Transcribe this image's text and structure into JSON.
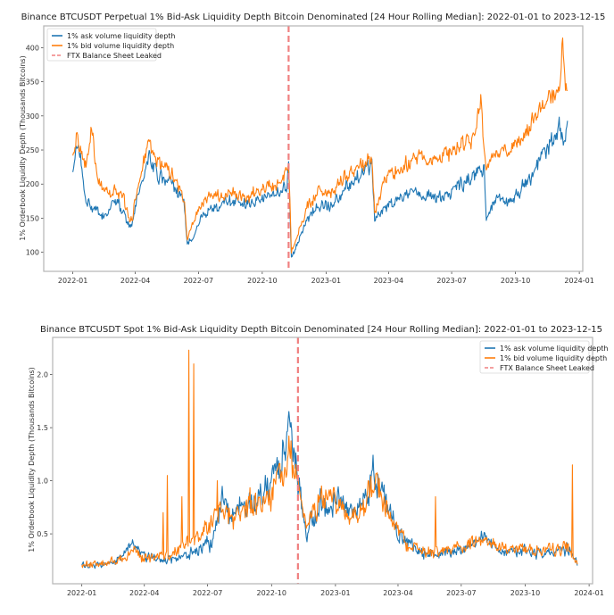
{
  "colors": {
    "ask": "#1f77b4",
    "bid": "#ff7f0e",
    "event": "#f08080"
  },
  "chart_data": [
    {
      "type": "line",
      "title": "Binance BTCUSDT Perpetual 1% Bid-Ask Liquidity Depth Bitcoin Denominated [24 Hour Rolling Median]: 2022-01-01 to 2023-12-15",
      "xlabel": "",
      "ylabel": "1% Orderbook Liquidity Depth (Thousands Bitcoins)",
      "xlim": [
        "2021-11-20",
        "2024-01-06"
      ],
      "ylim": [
        72,
        432
      ],
      "x_ticks": [
        "2022-01",
        "2022-04",
        "2022-07",
        "2022-10",
        "2023-01",
        "2023-04",
        "2023-07",
        "2023-10",
        "2024-01"
      ],
      "y_ticks": [
        100,
        150,
        200,
        250,
        300,
        350,
        400
      ],
      "grid": false,
      "legend_position": "top-left",
      "legend": [
        "1% ask volume liquidity depth",
        "1% bid volume liquidity depth",
        "FTX Balance Sheet Leaked"
      ],
      "event": {
        "label": "FTX Balance Sheet Leaked",
        "date": "2022-11-08"
      },
      "series": [
        {
          "name": "1% ask volume liquidity depth",
          "anchors": [
            [
              "2022-01-01",
              215
            ],
            [
              "2022-01-05",
              250
            ],
            [
              "2022-01-12",
              235
            ],
            [
              "2022-01-20",
              175
            ],
            [
              "2022-02-01",
              160
            ],
            [
              "2022-02-15",
              150
            ],
            [
              "2022-03-01",
              175
            ],
            [
              "2022-03-15",
              160
            ],
            [
              "2022-03-25",
              135
            ],
            [
              "2022-04-10",
              200
            ],
            [
              "2022-04-20",
              240
            ],
            [
              "2022-05-05",
              210
            ],
            [
              "2022-05-25",
              200
            ],
            [
              "2022-06-10",
              170
            ],
            [
              "2022-06-15",
              110
            ],
            [
              "2022-06-25",
              130
            ],
            [
              "2022-07-10",
              160
            ],
            [
              "2022-07-25",
              165
            ],
            [
              "2022-08-15",
              175
            ],
            [
              "2022-09-10",
              170
            ],
            [
              "2022-10-01",
              180
            ],
            [
              "2022-10-20",
              185
            ],
            [
              "2022-11-05",
              200
            ],
            [
              "2022-11-08",
              225
            ],
            [
              "2022-11-12",
              95
            ],
            [
              "2022-11-20",
              110
            ],
            [
              "2022-12-05",
              150
            ],
            [
              "2022-12-20",
              165
            ],
            [
              "2023-01-10",
              170
            ],
            [
              "2023-01-25",
              190
            ],
            [
              "2023-02-15",
              210
            ],
            [
              "2023-03-01",
              225
            ],
            [
              "2023-03-08",
              230
            ],
            [
              "2023-03-12",
              145
            ],
            [
              "2023-03-25",
              165
            ],
            [
              "2023-04-15",
              180
            ],
            [
              "2023-05-15",
              185
            ],
            [
              "2023-06-15",
              180
            ],
            [
              "2023-07-10",
              195
            ],
            [
              "2023-08-01",
              210
            ],
            [
              "2023-08-17",
              225
            ],
            [
              "2023-08-20",
              145
            ],
            [
              "2023-09-01",
              180
            ],
            [
              "2023-09-20",
              170
            ],
            [
              "2023-10-10",
              195
            ],
            [
              "2023-10-25",
              210
            ],
            [
              "2023-11-10",
              245
            ],
            [
              "2023-11-25",
              265
            ],
            [
              "2023-12-05",
              285
            ],
            [
              "2023-12-10",
              265
            ],
            [
              "2023-12-15",
              290
            ]
          ]
        },
        {
          "name": "1% bid volume liquidity depth",
          "anchors": [
            [
              "2022-01-01",
              240
            ],
            [
              "2022-01-05",
              270
            ],
            [
              "2022-01-12",
              245
            ],
            [
              "2022-01-20",
              230
            ],
            [
              "2022-01-28",
              280
            ],
            [
              "2022-02-05",
              210
            ],
            [
              "2022-02-15",
              185
            ],
            [
              "2022-03-01",
              190
            ],
            [
              "2022-03-15",
              180
            ],
            [
              "2022-03-25",
              140
            ],
            [
              "2022-04-10",
              215
            ],
            [
              "2022-04-20",
              260
            ],
            [
              "2022-05-05",
              230
            ],
            [
              "2022-05-25",
              215
            ],
            [
              "2022-06-10",
              180
            ],
            [
              "2022-06-15",
              120
            ],
            [
              "2022-06-25",
              150
            ],
            [
              "2022-07-10",
              175
            ],
            [
              "2022-07-25",
              185
            ],
            [
              "2022-08-15",
              190
            ],
            [
              "2022-09-10",
              180
            ],
            [
              "2022-10-01",
              195
            ],
            [
              "2022-10-20",
              200
            ],
            [
              "2022-11-05",
              210
            ],
            [
              "2022-11-08",
              230
            ],
            [
              "2022-11-12",
              100
            ],
            [
              "2022-11-20",
              125
            ],
            [
              "2022-12-05",
              170
            ],
            [
              "2022-12-20",
              185
            ],
            [
              "2023-01-10",
              185
            ],
            [
              "2023-01-25",
              205
            ],
            [
              "2023-02-15",
              220
            ],
            [
              "2023-03-01",
              235
            ],
            [
              "2023-03-08",
              240
            ],
            [
              "2023-03-12",
              160
            ],
            [
              "2023-03-25",
              205
            ],
            [
              "2023-04-15",
              225
            ],
            [
              "2023-05-15",
              240
            ],
            [
              "2023-06-15",
              240
            ],
            [
              "2023-07-10",
              255
            ],
            [
              "2023-08-01",
              265
            ],
            [
              "2023-08-12",
              320
            ],
            [
              "2023-08-20",
              220
            ],
            [
              "2023-09-01",
              250
            ],
            [
              "2023-09-20",
              245
            ],
            [
              "2023-10-10",
              265
            ],
            [
              "2023-10-25",
              290
            ],
            [
              "2023-11-10",
              320
            ],
            [
              "2023-11-25",
              335
            ],
            [
              "2023-12-05",
              345
            ],
            [
              "2023-12-08",
              415
            ],
            [
              "2023-12-12",
              320
            ],
            [
              "2023-12-15",
              340
            ]
          ]
        }
      ]
    },
    {
      "type": "line",
      "title": "Binance BTCUSDT Spot 1% Bid-Ask Liquidity Depth Bitcoin Denominated [24 Hour Rolling Median]: 2022-01-01 to 2023-12-15",
      "xlabel": "",
      "ylabel": "1% Orderbook Liquidity Depth (Thousands Bitcoins)",
      "xlim": [
        "2021-11-20",
        "2024-01-06"
      ],
      "ylim": [
        0.03,
        2.35
      ],
      "x_ticks": [
        "2022-01",
        "2022-04",
        "2022-07",
        "2022-10",
        "2023-01",
        "2023-04",
        "2023-07",
        "2023-10",
        "2024-01"
      ],
      "y_ticks": [
        0.5,
        1.0,
        1.5,
        2.0
      ],
      "grid": false,
      "legend_position": "top-right",
      "legend": [
        "1% ask volume liquidity depth",
        "1% bid volume liquidity depth",
        "FTX Balance Sheet Leaked"
      ],
      "event": {
        "label": "FTX Balance Sheet Leaked",
        "date": "2022-11-08"
      },
      "series": [
        {
          "name": "1% ask volume liquidity depth",
          "anchors": [
            [
              "2022-01-01",
              0.2
            ],
            [
              "2022-02-01",
              0.22
            ],
            [
              "2022-03-01",
              0.28
            ],
            [
              "2022-03-15",
              0.4
            ],
            [
              "2022-04-01",
              0.28
            ],
            [
              "2022-05-01",
              0.25
            ],
            [
              "2022-06-01",
              0.3
            ],
            [
              "2022-06-20",
              0.35
            ],
            [
              "2022-07-10",
              0.45
            ],
            [
              "2022-07-20",
              0.85
            ],
            [
              "2022-08-01",
              0.7
            ],
            [
              "2022-09-01",
              0.75
            ],
            [
              "2022-10-01",
              0.95
            ],
            [
              "2022-10-15",
              1.2
            ],
            [
              "2022-10-25",
              1.45
            ],
            [
              "2022-11-05",
              1.2
            ],
            [
              "2022-11-10",
              0.9
            ],
            [
              "2022-11-20",
              0.5
            ],
            [
              "2022-12-10",
              0.8
            ],
            [
              "2023-01-05",
              0.85
            ],
            [
              "2023-01-20",
              0.7
            ],
            [
              "2023-02-15",
              0.85
            ],
            [
              "2023-02-25",
              1.1
            ],
            [
              "2023-03-15",
              0.8
            ],
            [
              "2023-04-01",
              0.5
            ],
            [
              "2023-05-01",
              0.35
            ],
            [
              "2023-06-01",
              0.3
            ],
            [
              "2023-07-01",
              0.35
            ],
            [
              "2023-08-01",
              0.45
            ],
            [
              "2023-09-01",
              0.33
            ],
            [
              "2023-10-01",
              0.35
            ],
            [
              "2023-11-01",
              0.32
            ],
            [
              "2023-12-01",
              0.35
            ],
            [
              "2023-12-15",
              0.22
            ]
          ]
        },
        {
          "name": "1% bid volume liquidity depth",
          "anchors": [
            [
              "2022-01-01",
              0.2
            ],
            [
              "2022-02-01",
              0.22
            ],
            [
              "2022-03-01",
              0.26
            ],
            [
              "2022-03-15",
              0.35
            ],
            [
              "2022-04-01",
              0.28
            ],
            [
              "2022-05-01",
              0.3
            ],
            [
              "2022-05-20",
              0.35
            ],
            [
              "2022-06-10",
              0.45
            ],
            [
              "2022-07-01",
              0.55
            ],
            [
              "2022-07-20",
              0.75
            ],
            [
              "2022-08-01",
              0.65
            ],
            [
              "2022-09-01",
              0.75
            ],
            [
              "2022-10-01",
              0.85
            ],
            [
              "2022-10-15",
              1.0
            ],
            [
              "2022-10-25",
              1.25
            ],
            [
              "2022-11-05",
              1.1
            ],
            [
              "2022-11-10",
              0.85
            ],
            [
              "2022-11-20",
              0.55
            ],
            [
              "2022-12-10",
              0.85
            ],
            [
              "2023-01-05",
              0.8
            ],
            [
              "2023-01-20",
              0.65
            ],
            [
              "2023-02-15",
              0.8
            ],
            [
              "2023-02-28",
              1.0
            ],
            [
              "2023-03-15",
              0.75
            ],
            [
              "2023-04-01",
              0.5
            ],
            [
              "2023-05-01",
              0.35
            ],
            [
              "2023-06-01",
              0.32
            ],
            [
              "2023-07-01",
              0.38
            ],
            [
              "2023-08-01",
              0.45
            ],
            [
              "2023-09-01",
              0.35
            ],
            [
              "2023-10-01",
              0.37
            ],
            [
              "2023-11-01",
              0.33
            ],
            [
              "2023-12-01",
              0.38
            ],
            [
              "2023-12-15",
              0.22
            ]
          ],
          "spikes": [
            [
              "2022-05-04",
              1.05
            ],
            [
              "2022-04-28",
              0.7
            ],
            [
              "2022-06-04",
              2.23
            ],
            [
              "2022-06-11",
              2.1
            ],
            [
              "2022-05-25",
              0.85
            ],
            [
              "2022-07-15",
              1.0
            ],
            [
              "2023-05-25",
              0.85
            ],
            [
              "2023-12-08",
              1.15
            ]
          ]
        }
      ]
    }
  ]
}
